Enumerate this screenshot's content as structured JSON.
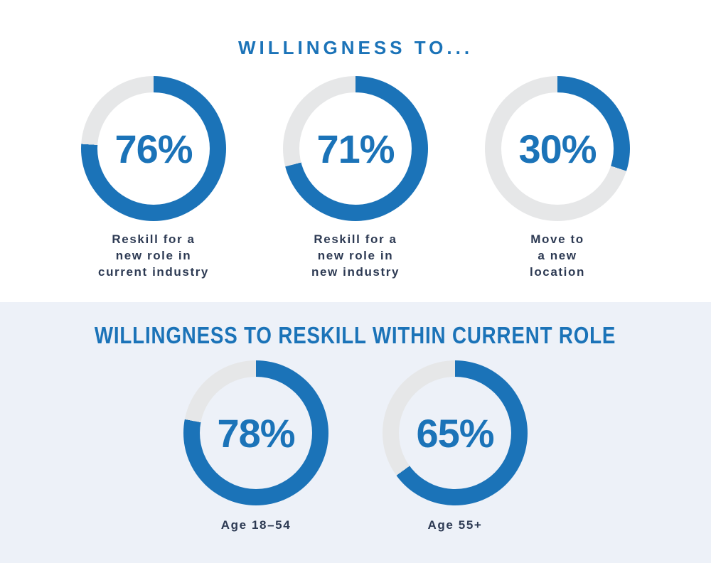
{
  "colors": {
    "fill_blue": "#1b73b8",
    "track_gray": "#e6e7e8",
    "label_navy": "#2d3a53",
    "top_bg": "#ffffff",
    "bottom_bg": "#edf1f8"
  },
  "chart_data": [
    {
      "type": "pie",
      "variant": "donut",
      "title": "WILLINGNESS TO...",
      "legend_position": "none",
      "value_range": [
        0,
        100
      ],
      "items": [
        {
          "value": 76,
          "display": "76%",
          "label": "Reskill for a new role in current industry",
          "label_lines": [
            "Reskill for a",
            "new role in",
            "current industry"
          ]
        },
        {
          "value": 71,
          "display": "71%",
          "label": "Reskill for a new role in new industry",
          "label_lines": [
            "Reskill for a",
            "new role in",
            "new industry"
          ]
        },
        {
          "value": 30,
          "display": "30%",
          "label": "Move to a new location",
          "label_lines": [
            "Move to",
            "a new",
            "location"
          ]
        }
      ]
    },
    {
      "type": "pie",
      "variant": "donut",
      "title": "WILLINGNESS TO RESKILL WITHIN CURRENT ROLE",
      "legend_position": "none",
      "value_range": [
        0,
        100
      ],
      "items": [
        {
          "value": 78,
          "display": "78%",
          "label": "Age 18–54",
          "label_lines": [
            "Age 18–54"
          ]
        },
        {
          "value": 65,
          "display": "65%",
          "label": "Age 55+",
          "label_lines": [
            "Age 55+"
          ]
        }
      ]
    }
  ]
}
